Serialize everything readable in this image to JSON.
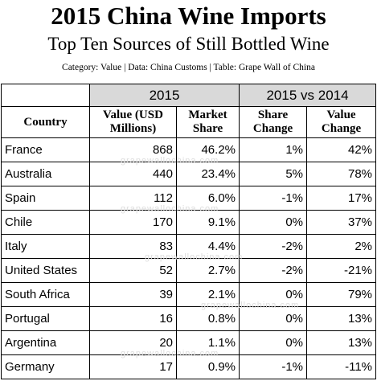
{
  "header": {
    "title": "2015 China Wine Imports",
    "subtitle": "Top Ten Sources of Still Bottled Wine",
    "caption": "Category: Value | Data: China Customs | Table: Grape Wall of China"
  },
  "watermark": "grapewallochina.com",
  "table": {
    "groups": [
      "2015",
      "2015 vs 2014"
    ],
    "columns": [
      "Country",
      "Value (USD Millions)",
      "Market Share",
      "Share Change",
      "Value Change"
    ],
    "rows": [
      [
        "France",
        "868",
        "46.2%",
        "1%",
        "42%"
      ],
      [
        "Australia",
        "440",
        "23.4%",
        "5%",
        "78%"
      ],
      [
        "Spain",
        "112",
        "6.0%",
        "-1%",
        "17%"
      ],
      [
        "Chile",
        "170",
        "9.1%",
        "0%",
        "37%"
      ],
      [
        "Italy",
        "83",
        "4.4%",
        "-2%",
        "2%"
      ],
      [
        "United States",
        "52",
        "2.7%",
        "-2%",
        "-21%"
      ],
      [
        "South Africa",
        "39",
        "2.1%",
        "0%",
        "79%"
      ],
      [
        "Portugal",
        "16",
        "0.8%",
        "0%",
        "13%"
      ],
      [
        "Argentina",
        "20",
        "1.1%",
        "0%",
        "13%"
      ],
      [
        "Germany",
        "17",
        "0.9%",
        "-1%",
        "-11%"
      ]
    ]
  }
}
